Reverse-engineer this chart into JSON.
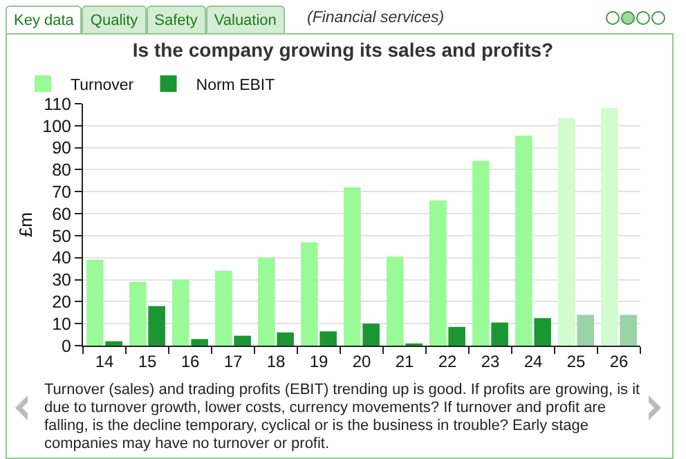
{
  "chart_data": {
    "type": "bar",
    "title": "Is the company growing its sales and profits?",
    "ylabel": "£m",
    "categories": [
      "14",
      "15",
      "16",
      "17",
      "18",
      "19",
      "20",
      "21",
      "22",
      "23",
      "24",
      "25",
      "26"
    ],
    "series": [
      {
        "name": "Turnover",
        "color": "#98fb98",
        "colors": [
          "#98fb98",
          "#98fb98",
          "#98fb98",
          "#98fb98",
          "#98fb98",
          "#98fb98",
          "#98fb98",
          "#98fb98",
          "#98fb98",
          "#98fb98",
          "#98fb98",
          "#d0fcd0",
          "#d0fcd0"
        ],
        "values": [
          39,
          29,
          30,
          34,
          40,
          47,
          72,
          40.5,
          66,
          84,
          95.5,
          103.5,
          108
        ]
      },
      {
        "name": "Norm EBIT",
        "color": "#1a9632",
        "colors": [
          "#1a9632",
          "#1a9632",
          "#1a9632",
          "#1a9632",
          "#1a9632",
          "#1a9632",
          "#1a9632",
          "#1a9632",
          "#1a9632",
          "#1a9632",
          "#1a9632",
          "#99d3a6",
          "#99d3a6"
        ],
        "values": [
          2,
          18,
          3,
          4.5,
          6,
          6.5,
          10,
          1,
          8.5,
          10.5,
          12.5,
          14,
          14
        ]
      }
    ],
    "ylim": [
      0,
      110
    ],
    "yticks": [
      0,
      10,
      20,
      30,
      40,
      50,
      60,
      70,
      80,
      90,
      100,
      110
    ],
    "grid": "y",
    "legend": "top left",
    "annotations": [
      "Key data",
      "Quality",
      "Safety",
      "Valuation",
      "(Financial services)",
      "Turnover (sales) and trading profits (EBIT) trending up is good. If profits are growing, is it due to turnover growth, lower costs, currency movements? If turnover and profit are falling, is the decline temporary, cyclical or is the business in trouble? Early stage companies may have no turnover or profit."
    ]
  }
}
